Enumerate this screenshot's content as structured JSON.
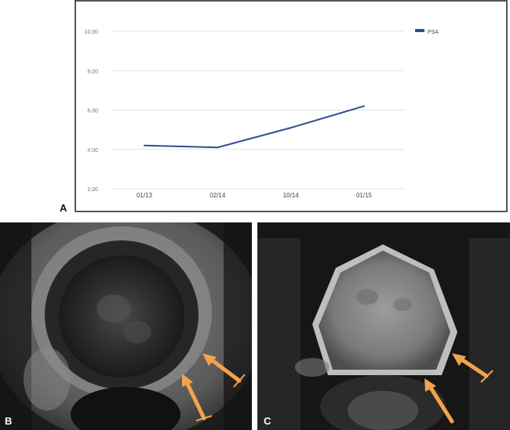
{
  "panels": {
    "a_label": "A",
    "b_label": "B",
    "c_label": "C"
  },
  "colors": {
    "series_line": "#2f4f8f",
    "grid": "#e2e2e2",
    "tick_text": "#777777",
    "arrow": "#f2a44c"
  },
  "chart_data": {
    "type": "line",
    "categories": [
      "01/13",
      "02/14",
      "10/14",
      "01/15"
    ],
    "series": [
      {
        "name": "PSA",
        "values": [
          4.2,
          4.1,
          5.1,
          6.2
        ]
      }
    ],
    "yticks": [
      "2,00",
      "4,00",
      "6,00",
      "8,00",
      "10,00"
    ],
    "ylim": [
      2,
      10
    ],
    "grid": true,
    "legend": "top-right"
  }
}
